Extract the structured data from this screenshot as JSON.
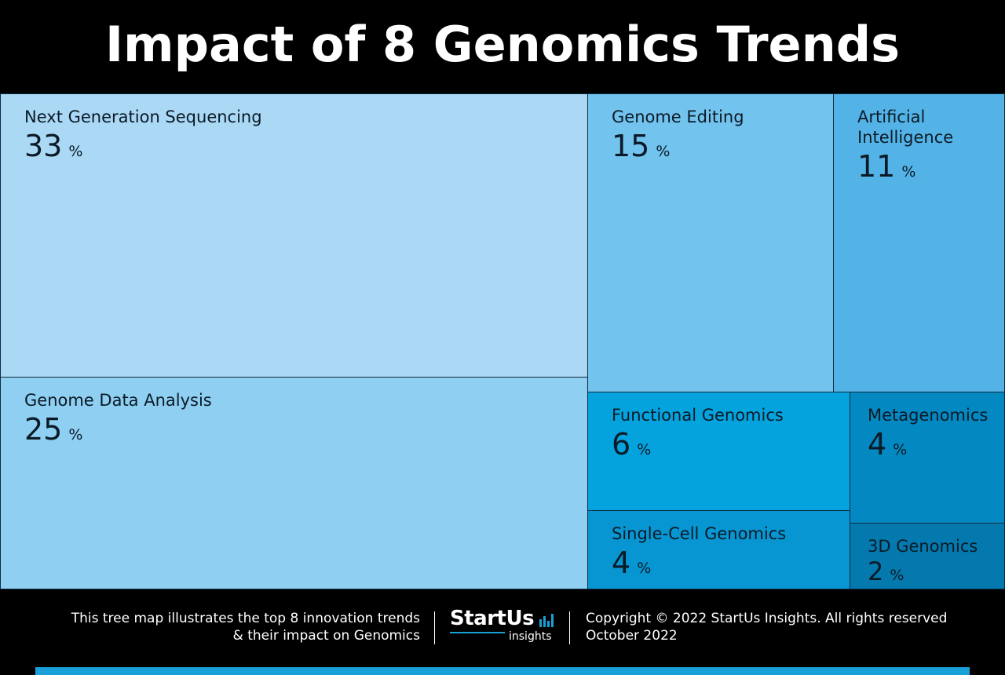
{
  "header": {
    "title": "Impact of 8 Genomics Trends"
  },
  "chart_data": {
    "type": "treemap",
    "title": "Impact of 8 Genomics Trends",
    "unit": "%",
    "items": [
      {
        "name": "Next Generation Sequencing",
        "value": 33,
        "color": "#aad8f5"
      },
      {
        "name": "Genome Data Analysis",
        "value": 25,
        "color": "#8ecff2"
      },
      {
        "name": "Genome Editing",
        "value": 15,
        "color": "#72c3ee"
      },
      {
        "name": "Artificial Intelligence",
        "value": 11,
        "color": "#53b3e6"
      },
      {
        "name": "Functional Genomics",
        "value": 6,
        "color": "#04a3de"
      },
      {
        "name": "Single-Cell Genomics",
        "value": 4,
        "color": "#0796d2"
      },
      {
        "name": "Metagenomics",
        "value": 4,
        "color": "#0488c1"
      },
      {
        "name": "3D Genomics",
        "value": 2,
        "color": "#0479ae"
      }
    ]
  },
  "footer": {
    "description_line1": "This tree map illustrates the top 8 innovation trends",
    "description_line2": "& their impact on Genomics",
    "logo_text": "StartUs",
    "logo_sub": "insights",
    "copyright": "Copyright © 2022 StartUs Insights. All rights reserved",
    "date": "October 2022",
    "accent_color": "#1aa0d8"
  }
}
